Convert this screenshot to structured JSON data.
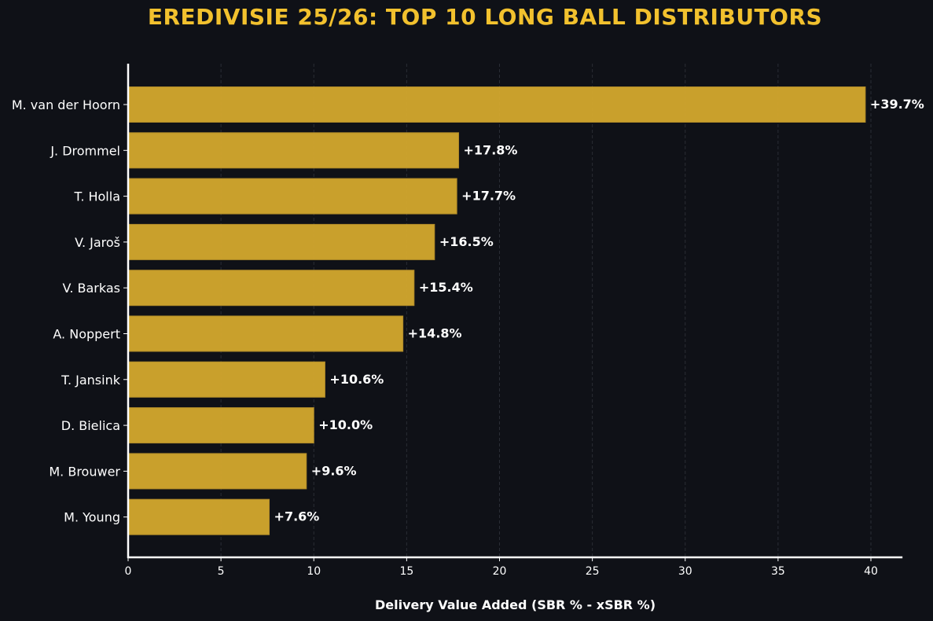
{
  "chart_data": {
    "type": "bar",
    "orientation": "horizontal",
    "title": "EREDIVISIE 25/26: TOP 10 LONG BALL DISTRIBUTORS",
    "xlabel": "Delivery Value Added (SBR % - xSBR %)",
    "ylabel": "",
    "categories": [
      "M. van der Hoorn",
      "J. Drommel",
      "T. Holla",
      "V. Jaroš",
      "V. Barkas",
      "A. Noppert",
      "T. Jansink",
      "D. Bielica",
      "M. Brouwer",
      "M. Young"
    ],
    "values": [
      39.7,
      17.8,
      17.7,
      16.5,
      15.4,
      14.8,
      10.6,
      10.0,
      9.6,
      7.6
    ],
    "value_labels": [
      "+39.7%",
      "+17.8%",
      "+17.7%",
      "+16.5%",
      "+15.4%",
      "+14.8%",
      "+10.6%",
      "+10.0%",
      "+9.6%",
      "+7.6%"
    ],
    "xlim": [
      0,
      41.7
    ],
    "xticks": [
      0,
      5,
      10,
      15,
      20,
      25,
      30,
      35,
      40
    ],
    "xtick_labels": [
      "0",
      "5",
      "10",
      "15",
      "20",
      "25",
      "30",
      "35",
      "40"
    ],
    "grid": "vertical dashed",
    "legend": "none",
    "colors": {
      "background": "#0f1117",
      "bar": "#d4a82e",
      "bar_edge": "#b8912a",
      "title": "#f2c12e",
      "text": "#ffffff",
      "grid": "#2a2d35",
      "axis": "#ffffff"
    }
  }
}
